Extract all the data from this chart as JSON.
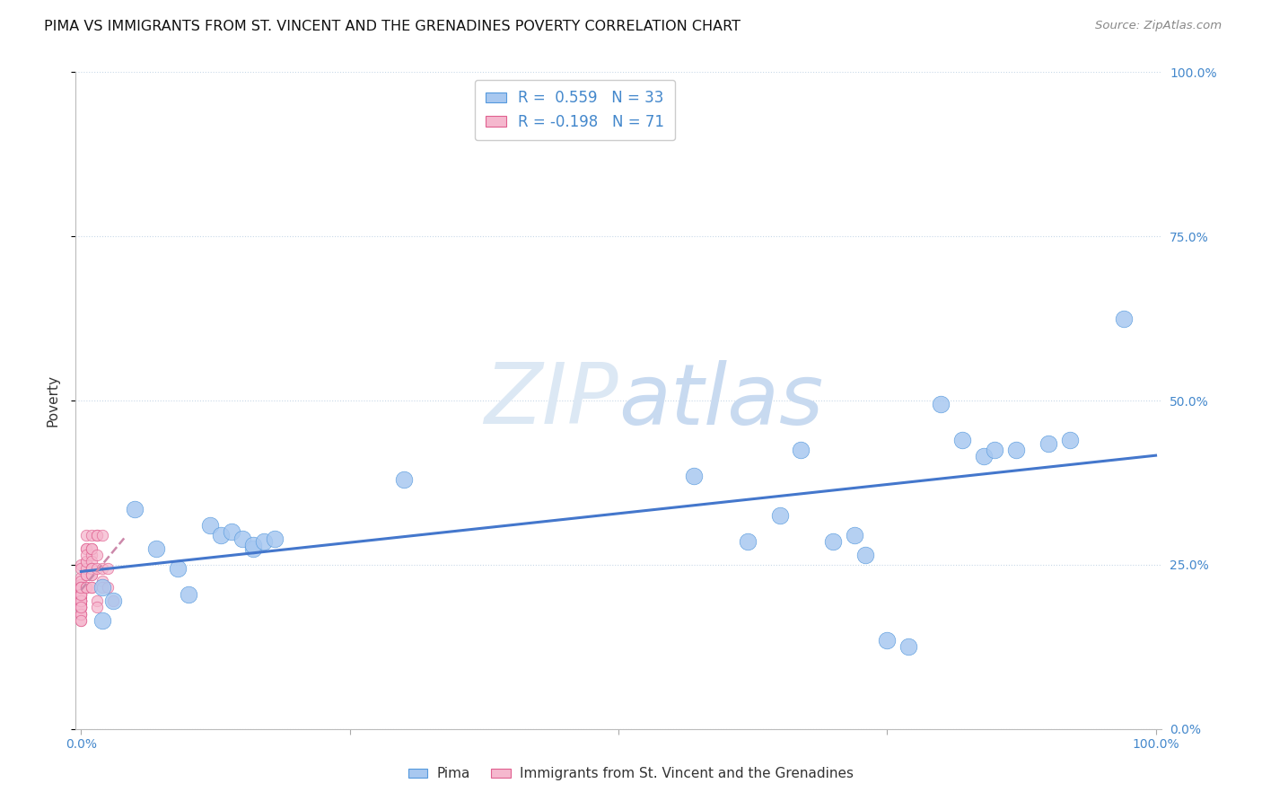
{
  "title": "PIMA VS IMMIGRANTS FROM ST. VINCENT AND THE GRENADINES POVERTY CORRELATION CHART",
  "source": "Source: ZipAtlas.com",
  "ylabel": "Poverty",
  "yticks_labels": [
    "0.0%",
    "25.0%",
    "50.0%",
    "75.0%",
    "100.0%"
  ],
  "ytick_vals": [
    0.0,
    0.25,
    0.5,
    0.75,
    1.0
  ],
  "pima_color": "#a8c8f0",
  "pima_edge_color": "#5599dd",
  "svg_color": "#f5b8ce",
  "svg_edge_color": "#e06090",
  "trend_blue_color": "#4477cc",
  "trend_pink_color": "#cc88aa",
  "R_pima": 0.559,
  "N_pima": 33,
  "R_svg": -0.198,
  "N_svg": 71,
  "legend_label_pima": "Pima",
  "legend_label_svg": "Immigrants from St. Vincent and the Grenadines",
  "pima_x": [
    0.02,
    0.02,
    0.03,
    0.05,
    0.07,
    0.09,
    0.1,
    0.12,
    0.13,
    0.14,
    0.15,
    0.16,
    0.16,
    0.17,
    0.18,
    0.3,
    0.57,
    0.62,
    0.65,
    0.67,
    0.7,
    0.72,
    0.73,
    0.75,
    0.77,
    0.8,
    0.82,
    0.84,
    0.85,
    0.87,
    0.9,
    0.92,
    0.97
  ],
  "pima_y": [
    0.215,
    0.165,
    0.195,
    0.335,
    0.275,
    0.245,
    0.205,
    0.31,
    0.295,
    0.3,
    0.29,
    0.275,
    0.28,
    0.285,
    0.29,
    0.38,
    0.385,
    0.285,
    0.325,
    0.425,
    0.285,
    0.295,
    0.265,
    0.135,
    0.125,
    0.495,
    0.44,
    0.415,
    0.425,
    0.425,
    0.435,
    0.44,
    0.625
  ],
  "svg_x": [
    0.0,
    0.0,
    0.0,
    0.0,
    0.0,
    0.0,
    0.0,
    0.0,
    0.0,
    0.0,
    0.0,
    0.0,
    0.0,
    0.0,
    0.0,
    0.0,
    0.0,
    0.0,
    0.0,
    0.0,
    0.0,
    0.0,
    0.0,
    0.0,
    0.0,
    0.0,
    0.0,
    0.0,
    0.0,
    0.0,
    0.0,
    0.0,
    0.0,
    0.0,
    0.0,
    0.0,
    0.005,
    0.005,
    0.005,
    0.005,
    0.005,
    0.005,
    0.005,
    0.005,
    0.005,
    0.005,
    0.005,
    0.01,
    0.01,
    0.01,
    0.01,
    0.01,
    0.01,
    0.01,
    0.01,
    0.01,
    0.01,
    0.01,
    0.015,
    0.015,
    0.015,
    0.015,
    0.015,
    0.015,
    0.02,
    0.02,
    0.02,
    0.02,
    0.025,
    0.025,
    0.03
  ],
  "svg_y": [
    0.21,
    0.23,
    0.19,
    0.25,
    0.2,
    0.195,
    0.185,
    0.22,
    0.215,
    0.205,
    0.185,
    0.195,
    0.175,
    0.205,
    0.215,
    0.195,
    0.185,
    0.245,
    0.205,
    0.195,
    0.165,
    0.215,
    0.175,
    0.185,
    0.195,
    0.225,
    0.195,
    0.205,
    0.185,
    0.175,
    0.215,
    0.195,
    0.205,
    0.185,
    0.165,
    0.215,
    0.275,
    0.255,
    0.235,
    0.215,
    0.275,
    0.295,
    0.245,
    0.255,
    0.265,
    0.215,
    0.235,
    0.295,
    0.265,
    0.275,
    0.255,
    0.235,
    0.245,
    0.215,
    0.245,
    0.275,
    0.215,
    0.235,
    0.295,
    0.265,
    0.245,
    0.295,
    0.195,
    0.185,
    0.295,
    0.225,
    0.245,
    0.215,
    0.245,
    0.215,
    0.195
  ],
  "bg_color": "#ffffff",
  "grid_color": "#c8d8e8",
  "watermark_color": "#dce8f4",
  "tick_color": "#4488cc",
  "axis_label_color": "#333333"
}
